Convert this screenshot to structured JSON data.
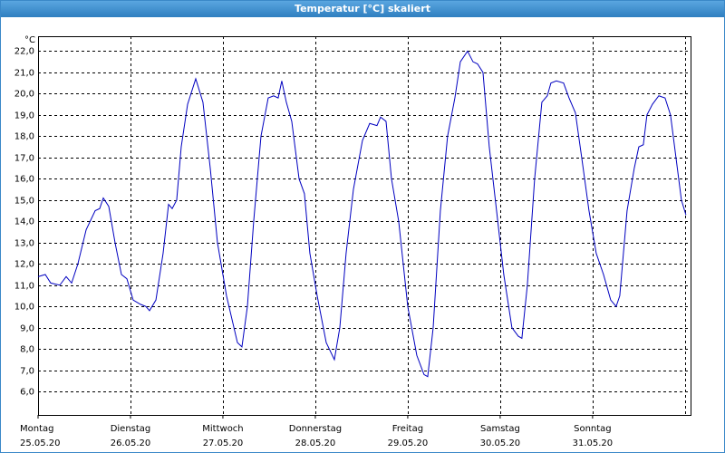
{
  "chart_data": {
    "type": "line",
    "title": "Temperatur [°C] skaliert",
    "y_unit": "°C",
    "color": "#0000c0",
    "grid": true,
    "ylim": [
      4.9,
      22.7
    ],
    "yticks": [
      {
        "value": 6,
        "label": "6,0"
      },
      {
        "value": 7,
        "label": "7,0"
      },
      {
        "value": 8,
        "label": "8,0"
      },
      {
        "value": 9,
        "label": "9,0"
      },
      {
        "value": 10,
        "label": "10,0"
      },
      {
        "value": 11,
        "label": "11,0"
      },
      {
        "value": 12,
        "label": "12,0"
      },
      {
        "value": 13,
        "label": "13,0"
      },
      {
        "value": 14,
        "label": "14,0"
      },
      {
        "value": 15,
        "label": "15,0"
      },
      {
        "value": 16,
        "label": "16,0"
      },
      {
        "value": 17,
        "label": "17,0"
      },
      {
        "value": 18,
        "label": "18,0"
      },
      {
        "value": 19,
        "label": "19,0"
      },
      {
        "value": 20,
        "label": "20,0"
      },
      {
        "value": 21,
        "label": "21,0"
      },
      {
        "value": 22,
        "label": "22,0"
      }
    ],
    "xlim": [
      0,
      7.06
    ],
    "xgrid": [
      1,
      2,
      3,
      4,
      5,
      6,
      7
    ],
    "xlabels": [
      {
        "value": 0,
        "day": "Montag",
        "date": "25.05.20"
      },
      {
        "value": 1,
        "day": "Dienstag",
        "date": "26.05.20"
      },
      {
        "value": 2,
        "day": "Mittwoch",
        "date": "27.05.20"
      },
      {
        "value": 3,
        "day": "Donnerstag",
        "date": "28.05.20"
      },
      {
        "value": 4,
        "day": "Freitag",
        "date": "29.05.20"
      },
      {
        "value": 5,
        "day": "Samstag",
        "date": "30.05.20"
      },
      {
        "value": 6,
        "day": "Sonntag",
        "date": "31.05.20"
      }
    ],
    "x": [
      0,
      0.078,
      0.137,
      0.235,
      0.304,
      0.363,
      0.431,
      0.52,
      0.618,
      0.667,
      0.706,
      0.765,
      0.833,
      0.902,
      0.961,
      1.029,
      1.108,
      1.167,
      1.206,
      1.275,
      1.353,
      1.412,
      1.451,
      1.5,
      1.549,
      1.618,
      1.706,
      1.784,
      1.863,
      1.941,
      2.039,
      2.157,
      2.206,
      2.265,
      2.333,
      2.412,
      2.49,
      2.549,
      2.598,
      2.637,
      2.686,
      2.745,
      2.824,
      2.882,
      2.941,
      3.02,
      3.118,
      3.206,
      3.265,
      3.333,
      3.412,
      3.51,
      3.588,
      3.667,
      3.706,
      3.765,
      3.824,
      3.902,
      4.0,
      4.098,
      4.176,
      4.216,
      4.275,
      4.353,
      4.431,
      4.51,
      4.569,
      4.647,
      4.706,
      4.755,
      4.814,
      4.882,
      4.961,
      5.039,
      5.127,
      5.196,
      5.235,
      5.294,
      5.373,
      5.451,
      5.51,
      5.549,
      5.608,
      5.686,
      5.745,
      5.814,
      5.882,
      5.961,
      6.039,
      6.118,
      6.196,
      6.255,
      6.294,
      6.373,
      6.451,
      6.5,
      6.549,
      6.588,
      6.647,
      6.716,
      6.784,
      6.843,
      6.902,
      6.961,
      7.01
    ],
    "values": [
      11.4,
      11.5,
      11.1,
      11.0,
      11.4,
      11.1,
      12.0,
      13.6,
      14.5,
      14.6,
      15.1,
      14.7,
      13.0,
      11.5,
      11.3,
      10.3,
      10.1,
      10.0,
      9.8,
      10.3,
      12.5,
      14.8,
      14.6,
      15.0,
      17.5,
      19.5,
      20.7,
      19.6,
      16.5,
      13.0,
      10.5,
      8.3,
      8.1,
      10.0,
      14.0,
      18.0,
      19.8,
      19.9,
      19.8,
      20.6,
      19.6,
      18.7,
      16.0,
      15.3,
      12.5,
      10.5,
      8.3,
      7.5,
      9.0,
      12.5,
      15.5,
      17.8,
      18.6,
      18.5,
      18.9,
      18.7,
      16.0,
      14.0,
      10.0,
      7.7,
      6.8,
      6.7,
      9.0,
      14.5,
      18.0,
      19.8,
      21.5,
      22.0,
      21.5,
      21.4,
      21.0,
      17.5,
      14.5,
      11.5,
      9.0,
      8.6,
      8.5,
      11.0,
      16.0,
      19.6,
      19.9,
      20.5,
      20.6,
      20.5,
      19.8,
      19.1,
      17.0,
      14.5,
      12.5,
      11.5,
      10.3,
      10.0,
      10.5,
      14.5,
      16.5,
      17.5,
      17.6,
      19.0,
      19.5,
      19.9,
      19.8,
      19.0,
      17.0,
      15.0,
      14.3
    ]
  }
}
